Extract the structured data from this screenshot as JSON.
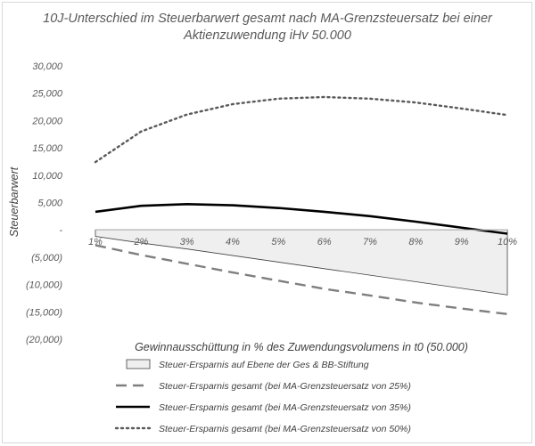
{
  "chart_data": {
    "type": "line",
    "title": "10J-Unterschied im Steuerbarwert gesamt nach MA-Grenzsteuersatz bei einer Aktienzuwendung iHv 50.000",
    "title_lines": [
      "10J-Unterschied im Steuerbarwert gesamt nach MA-Grenzsteuersatz bei einer",
      "Aktienzuwendung iHv 50.000"
    ],
    "xlabel": "Gewinnausschüttung in % des Zuwendungsvolumens in t0 (50.000)",
    "ylabel": "Steuerbarwert",
    "categories": [
      "1%",
      "2%",
      "3%",
      "4%",
      "5%",
      "6%",
      "7%",
      "8%",
      "9%",
      "10%"
    ],
    "ylim": [
      -20000,
      30000
    ],
    "y_ticks": [
      {
        "value": 30000,
        "label": "30,000"
      },
      {
        "value": 25000,
        "label": "25,000"
      },
      {
        "value": 20000,
        "label": "20,000"
      },
      {
        "value": 15000,
        "label": "15,000"
      },
      {
        "value": 10000,
        "label": "10,000"
      },
      {
        "value": 5000,
        "label": "5,000"
      },
      {
        "value": 0,
        "label": "-"
      },
      {
        "value": -5000,
        "label": "(5,000)"
      },
      {
        "value": -10000,
        "label": "(10,000)"
      },
      {
        "value": -15000,
        "label": "(15,000)"
      },
      {
        "value": -20000,
        "label": "(20,000)"
      }
    ],
    "grid": false,
    "legend_position": "bottom",
    "series": [
      {
        "name": "Steuer-Ersparnis  auf Ebene der Ges & BB-Stiftung",
        "type": "area",
        "style": "area",
        "color": "#404040",
        "fill": "#efefef",
        "values": [
          -1200,
          -2400,
          -3500,
          -4700,
          -5900,
          -7100,
          -8300,
          -9500,
          -10700,
          -11900
        ]
      },
      {
        "name": "Steuer-Ersparnis  gesamt (bei MA-Grenzsteuersatz von 25%)",
        "type": "line",
        "style": "dashed",
        "color": "#7f7f7f",
        "values": [
          -2800,
          -4600,
          -6200,
          -7800,
          -9300,
          -10800,
          -12000,
          -13300,
          -14400,
          -15400
        ]
      },
      {
        "name": "Steuer-Ersparnis  gesamt (bei MA-Grenzsteuersatz von 35%)",
        "type": "line",
        "style": "solid",
        "color": "#000000",
        "values": [
          3300,
          4400,
          4700,
          4500,
          4000,
          3300,
          2500,
          1500,
          400,
          -700
        ]
      },
      {
        "name": "Steuer-Ersparnis  gesamt (bei MA-Grenzsteuersatz von 50%)",
        "type": "line",
        "style": "dotted",
        "color": "#595959",
        "values": [
          12400,
          18000,
          21100,
          23000,
          24000,
          24300,
          24000,
          23300,
          22200,
          21000
        ]
      }
    ]
  }
}
